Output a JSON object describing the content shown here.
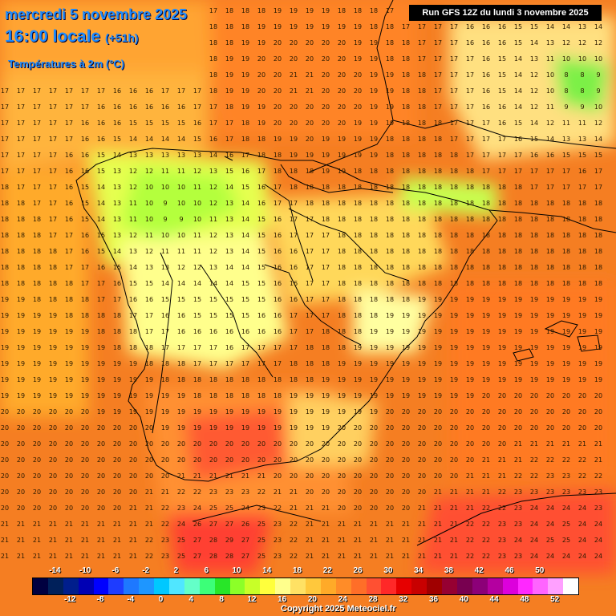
{
  "header": {
    "date": "mercredi 5 novembre 2025",
    "time": "16:00 locale",
    "offset": "(+51h)",
    "variable": "Températures à 2m (°C)",
    "run": "Run GFS 12Z du lundi 3 novembre 2025"
  },
  "legend": {
    "colors": [
      "#000040",
      "#00205a",
      "#001e8c",
      "#0000b4",
      "#0000ff",
      "#1e3cff",
      "#1e78ff",
      "#1e96ff",
      "#00c8ff",
      "#50e6ff",
      "#64ffc8",
      "#3cff78",
      "#28e628",
      "#8cff28",
      "#c8ff28",
      "#ffff3c",
      "#ffff8c",
      "#ffe164",
      "#ffc83c",
      "#ffaa28",
      "#ff8c28",
      "#ff6e28",
      "#ff5032",
      "#ff2828",
      "#e60000",
      "#c80000",
      "#a00000",
      "#960032",
      "#780050",
      "#8c0078",
      "#b400a0",
      "#dc00dc",
      "#ff28ff",
      "#ff64ff",
      "#ffa0ff",
      "#ffffff"
    ],
    "top_labels": [
      "-14",
      "-10",
      "-6",
      "-2",
      "2",
      "6",
      "10",
      "14",
      "18",
      "22",
      "26",
      "30",
      "34",
      "38",
      "42",
      "46",
      "50"
    ],
    "bottom_labels": [
      "-12",
      "-8",
      "-4",
      "0",
      "4",
      "8",
      "12",
      "16",
      "20",
      "24",
      "28",
      "32",
      "36",
      "40",
      "44",
      "48",
      "52"
    ]
  },
  "footer": {
    "copyright": "Copyright 2025 Meteociel.fr"
  }
}
